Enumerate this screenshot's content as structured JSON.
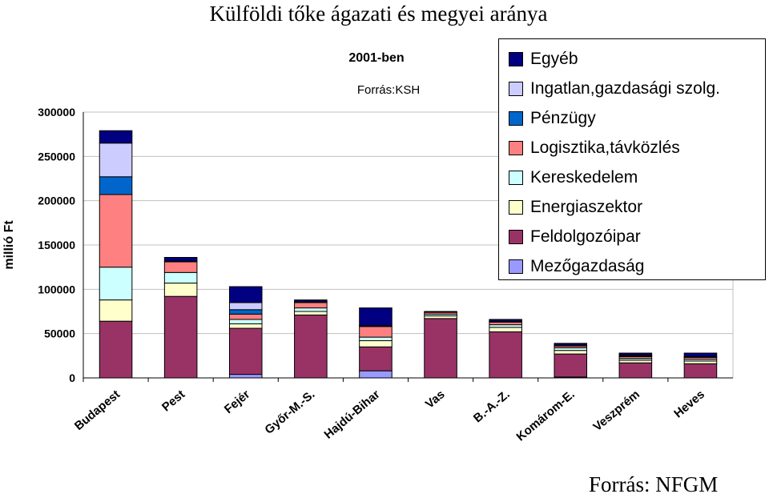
{
  "chart_data": {
    "type": "bar",
    "stacked": true,
    "title": "Külföldi tőke ágazati és megyei aránya",
    "subtitle": "2001-ben",
    "note": "Forrás:KSH",
    "footer": "Forrás: NFGM",
    "ylabel": "millió Ft",
    "xlabel": "",
    "ylim": [
      0,
      300000
    ],
    "yticks": [
      0,
      50000,
      100000,
      150000,
      200000,
      250000,
      300000
    ],
    "grid": true,
    "legend_position": "top-right",
    "categories": [
      "Budapest",
      "Pest",
      "Fejér",
      "Győr-M.-S.",
      "Hajdú-Bihar",
      "Vas",
      "B.-A.-Z.",
      "Komárom-E.",
      "Veszprém",
      "Heves"
    ],
    "series": [
      {
        "name": "Mezőgazdaság",
        "color": "#9999ff",
        "values": [
          0,
          0,
          4000,
          0,
          8000,
          0,
          0,
          1000,
          0,
          0
        ]
      },
      {
        "name": "Feldolgozóipar",
        "color": "#993366",
        "values": [
          64000,
          92000,
          52000,
          71000,
          27000,
          67000,
          52000,
          26000,
          17000,
          16000
        ]
      },
      {
        "name": "Energiaszektor",
        "color": "#ffffcc",
        "values": [
          24000,
          15000,
          5000,
          4000,
          7000,
          3000,
          5000,
          4000,
          3000,
          3000
        ]
      },
      {
        "name": "Kereskedelem",
        "color": "#ccffff",
        "values": [
          37000,
          12000,
          5000,
          4000,
          4000,
          2000,
          3000,
          3000,
          2000,
          2000
        ]
      },
      {
        "name": "Logisztika,távközlés",
        "color": "#ff8080",
        "values": [
          82000,
          12000,
          6000,
          6000,
          12000,
          2000,
          3000,
          2000,
          2000,
          2000
        ]
      },
      {
        "name": "Pénzügy",
        "color": "#0066cc",
        "values": [
          20000,
          1000,
          5000,
          0,
          1000,
          0,
          1000,
          0,
          1000,
          0
        ]
      },
      {
        "name": "Ingatlan,gazdasági szolg.",
        "color": "#ccccff",
        "values": [
          38000,
          0,
          8000,
          1000,
          0,
          0,
          0,
          1000,
          1000,
          1000
        ]
      },
      {
        "name": "Egyéb",
        "color": "#000080",
        "values": [
          14000,
          4000,
          18000,
          2000,
          20000,
          1000,
          2000,
          2000,
          2000,
          4000
        ]
      }
    ]
  }
}
